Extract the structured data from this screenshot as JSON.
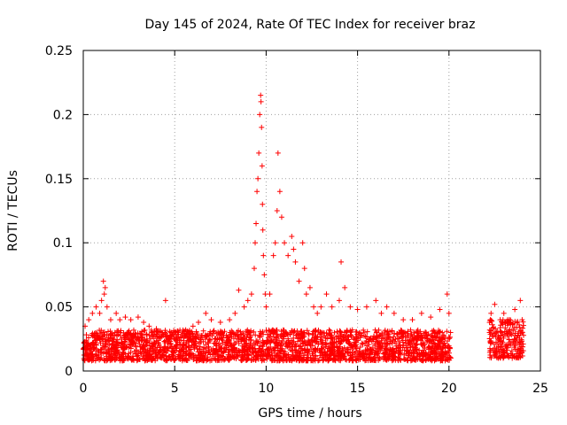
{
  "chart_data": {
    "type": "scatter",
    "title": "Day 145 of 2024, Rate Of TEC Index for receiver braz",
    "xlabel": "GPS time / hours",
    "ylabel": "ROTI / TECUs",
    "xlim": [
      0,
      25
    ],
    "ylim": [
      0,
      0.25
    ],
    "xticks": [
      "0",
      "5",
      "10",
      "15",
      "20",
      "25"
    ],
    "yticks": [
      "0",
      "0.05",
      "0.1",
      "0.15",
      "0.2",
      "0.25"
    ],
    "xtick_values": [
      0,
      5,
      10,
      15,
      20,
      25
    ],
    "ytick_values": [
      0,
      0.05,
      0.1,
      0.15,
      0.2,
      0.25
    ],
    "grid": true,
    "marker": "+",
    "series_color": "#ff0000",
    "points": [
      [
        0.1,
        0.035
      ],
      [
        0.3,
        0.04
      ],
      [
        0.5,
        0.045
      ],
      [
        0.7,
        0.05
      ],
      [
        0.9,
        0.045
      ],
      [
        1.0,
        0.055
      ],
      [
        1.1,
        0.07
      ],
      [
        1.15,
        0.06
      ],
      [
        1.2,
        0.065
      ],
      [
        1.3,
        0.05
      ],
      [
        1.5,
        0.04
      ],
      [
        1.8,
        0.045
      ],
      [
        2.0,
        0.04
      ],
      [
        2.3,
        0.042
      ],
      [
        2.6,
        0.04
      ],
      [
        3.0,
        0.042
      ],
      [
        3.3,
        0.038
      ],
      [
        3.6,
        0.035
      ],
      [
        4.0,
        0.033
      ],
      [
        4.3,
        0.03
      ],
      [
        4.5,
        0.055
      ],
      [
        4.8,
        0.03
      ],
      [
        5.2,
        0.03
      ],
      [
        5.6,
        0.032
      ],
      [
        6.0,
        0.035
      ],
      [
        6.3,
        0.038
      ],
      [
        6.7,
        0.045
      ],
      [
        7.0,
        0.04
      ],
      [
        7.5,
        0.038
      ],
      [
        8.0,
        0.04
      ],
      [
        8.3,
        0.045
      ],
      [
        8.5,
        0.063
      ],
      [
        8.8,
        0.05
      ],
      [
        9.0,
        0.055
      ],
      [
        9.2,
        0.06
      ],
      [
        9.35,
        0.08
      ],
      [
        9.4,
        0.1
      ],
      [
        9.45,
        0.115
      ],
      [
        9.5,
        0.14
      ],
      [
        9.55,
        0.15
      ],
      [
        9.6,
        0.17
      ],
      [
        9.65,
        0.2
      ],
      [
        9.7,
        0.215
      ],
      [
        9.72,
        0.21
      ],
      [
        9.75,
        0.19
      ],
      [
        9.78,
        0.16
      ],
      [
        9.8,
        0.13
      ],
      [
        9.82,
        0.11
      ],
      [
        9.85,
        0.09
      ],
      [
        9.9,
        0.075
      ],
      [
        9.95,
        0.06
      ],
      [
        10.0,
        0.05
      ],
      [
        10.2,
        0.06
      ],
      [
        10.4,
        0.09
      ],
      [
        10.5,
        0.1
      ],
      [
        10.6,
        0.125
      ],
      [
        10.65,
        0.17
      ],
      [
        10.75,
        0.14
      ],
      [
        10.85,
        0.12
      ],
      [
        11.0,
        0.1
      ],
      [
        11.2,
        0.09
      ],
      [
        11.4,
        0.105
      ],
      [
        11.5,
        0.095
      ],
      [
        11.6,
        0.085
      ],
      [
        11.8,
        0.07
      ],
      [
        12.0,
        0.1
      ],
      [
        12.1,
        0.08
      ],
      [
        12.2,
        0.06
      ],
      [
        12.4,
        0.065
      ],
      [
        12.6,
        0.05
      ],
      [
        12.8,
        0.045
      ],
      [
        13.0,
        0.05
      ],
      [
        13.3,
        0.06
      ],
      [
        13.6,
        0.05
      ],
      [
        14.0,
        0.055
      ],
      [
        14.1,
        0.085
      ],
      [
        14.3,
        0.065
      ],
      [
        14.6,
        0.05
      ],
      [
        15.0,
        0.048
      ],
      [
        15.5,
        0.05
      ],
      [
        16.0,
        0.055
      ],
      [
        16.3,
        0.045
      ],
      [
        16.6,
        0.05
      ],
      [
        17.0,
        0.045
      ],
      [
        17.5,
        0.04
      ],
      [
        18.0,
        0.04
      ],
      [
        18.5,
        0.045
      ],
      [
        19.0,
        0.042
      ],
      [
        19.5,
        0.048
      ],
      [
        19.9,
        0.06
      ],
      [
        20.0,
        0.045
      ],
      [
        22.3,
        0.045
      ],
      [
        22.5,
        0.052
      ],
      [
        22.8,
        0.04
      ],
      [
        23.0,
        0.045
      ],
      [
        23.3,
        0.04
      ],
      [
        23.6,
        0.048
      ],
      [
        23.9,
        0.055
      ],
      [
        24.0,
        0.04
      ]
    ],
    "density_band": {
      "segments": [
        {
          "x0": 0.0,
          "x1": 20.1,
          "ymin": 0.008,
          "ymax": 0.032
        },
        {
          "x0": 22.2,
          "x1": 24.1,
          "ymin": 0.01,
          "ymax": 0.04
        }
      ],
      "count": 2600
    }
  }
}
